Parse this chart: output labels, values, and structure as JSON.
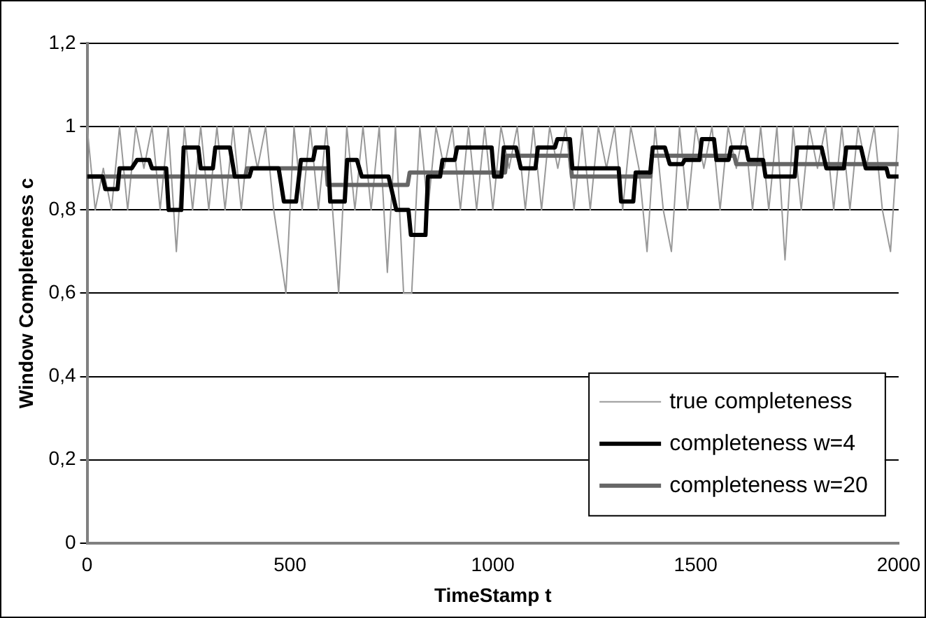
{
  "chart_data": {
    "type": "line",
    "xlabel": "TimeStamp t",
    "ylabel": "Window Completeness c",
    "xlim": [
      0,
      2000
    ],
    "xticks": [
      0,
      500,
      1000,
      1500,
      2000
    ],
    "ylim": [
      0,
      1.2
    ],
    "yticks": [
      0,
      {
        "value": 0.2,
        "label": "0,2"
      },
      {
        "value": 0.4,
        "label": "0,4"
      },
      {
        "value": 0.6,
        "label": "0,6"
      },
      {
        "value": 0.8,
        "label": "0,8"
      },
      1,
      {
        "value": 1.2,
        "label": "1,2"
      }
    ],
    "grid": "y",
    "legend": "bottom right",
    "marker": "none",
    "line_style": "solid",
    "series": [
      {
        "name": "true completeness",
        "color": "#999999",
        "x": [
          0,
          20,
          40,
          60,
          80,
          100,
          120,
          140,
          160,
          180,
          200,
          220,
          240,
          260,
          280,
          300,
          320,
          340,
          360,
          380,
          400,
          420,
          440,
          460,
          490,
          510,
          530,
          550,
          570,
          590,
          620,
          640,
          660,
          680,
          700,
          720,
          740,
          760,
          780,
          800,
          820,
          840,
          860,
          880,
          900,
          920,
          940,
          960,
          980,
          1000,
          1020,
          1040,
          1060,
          1080,
          1100,
          1120,
          1140,
          1160,
          1180,
          1200,
          1220,
          1240,
          1260,
          1280,
          1300,
          1320,
          1340,
          1360,
          1380,
          1400,
          1420,
          1440,
          1460,
          1480,
          1500,
          1520,
          1540,
          1560,
          1580,
          1600,
          1620,
          1640,
          1660,
          1680,
          1700,
          1720,
          1740,
          1760,
          1780,
          1800,
          1820,
          1840,
          1860,
          1880,
          1900,
          1920,
          1940,
          1960,
          1980,
          2000
        ],
        "values": [
          1,
          0.8,
          0.9,
          0.8,
          1,
          0.8,
          1,
          0.9,
          1,
          0.8,
          1,
          0.7,
          1,
          0.8,
          1,
          0.8,
          1,
          0.8,
          1,
          0.8,
          1,
          0.9,
          1,
          0.8,
          0.6,
          1,
          0.8,
          1,
          0.8,
          1,
          0.6,
          1,
          0.8,
          1,
          0.8,
          1,
          0.65,
          1,
          0.6,
          0.6,
          1,
          0.8,
          1,
          0.9,
          1,
          0.8,
          1,
          0.8,
          1,
          0.8,
          1,
          0.9,
          1,
          0.8,
          1,
          0.8,
          1,
          0.9,
          1,
          0.8,
          1,
          0.8,
          1,
          0.9,
          1,
          0.8,
          1,
          0.9,
          0.7,
          1,
          0.8,
          0.7,
          1,
          0.8,
          1,
          0.9,
          1,
          0.8,
          1,
          0.9,
          1,
          0.8,
          1,
          0.8,
          1,
          0.68,
          1,
          0.8,
          1,
          0.9,
          1,
          0.8,
          1,
          0.8,
          1,
          0.9,
          1,
          0.8,
          0.7,
          1
        ]
      },
      {
        "name": "completeness w=4",
        "color": "#000000",
        "x": [
          0,
          38,
          45,
          75,
          80,
          110,
          123,
          153,
          160,
          195,
          201,
          232,
          238,
          274,
          280,
          310,
          316,
          352,
          364,
          400,
          406,
          472,
          485,
          515,
          527,
          557,
          563,
          593,
          599,
          635,
          641,
          665,
          677,
          743,
          762,
          792,
          798,
          834,
          840,
          870,
          876,
          906,
          912,
          997,
          1003,
          1021,
          1027,
          1057,
          1069,
          1105,
          1111,
          1153,
          1159,
          1190,
          1196,
          1310,
          1316,
          1346,
          1352,
          1388,
          1394,
          1424,
          1436,
          1467,
          1473,
          1509,
          1515,
          1545,
          1551,
          1581,
          1587,
          1624,
          1630,
          1666,
          1672,
          1744,
          1750,
          1810,
          1822,
          1865,
          1871,
          1907,
          1919,
          1970,
          1975,
          2000
        ],
        "values": [
          0.88,
          0.88,
          0.85,
          0.85,
          0.9,
          0.9,
          0.92,
          0.92,
          0.9,
          0.9,
          0.8,
          0.8,
          0.95,
          0.95,
          0.9,
          0.9,
          0.95,
          0.95,
          0.88,
          0.88,
          0.9,
          0.9,
          0.82,
          0.82,
          0.92,
          0.92,
          0.95,
          0.95,
          0.82,
          0.82,
          0.92,
          0.92,
          0.88,
          0.88,
          0.8,
          0.8,
          0.74,
          0.74,
          0.88,
          0.88,
          0.92,
          0.92,
          0.95,
          0.95,
          0.88,
          0.88,
          0.95,
          0.95,
          0.9,
          0.9,
          0.95,
          0.95,
          0.97,
          0.97,
          0.9,
          0.9,
          0.82,
          0.82,
          0.89,
          0.89,
          0.95,
          0.95,
          0.91,
          0.91,
          0.92,
          0.92,
          0.97,
          0.97,
          0.92,
          0.92,
          0.95,
          0.95,
          0.92,
          0.92,
          0.88,
          0.88,
          0.95,
          0.95,
          0.9,
          0.9,
          0.95,
          0.95,
          0.9,
          0.9,
          0.88,
          0.88
        ]
      },
      {
        "name": "completeness w=20",
        "color": "#666666",
        "x": [
          0,
          390,
          394,
          590,
          593,
          790,
          795,
          1030,
          1035,
          1190,
          1195,
          1388,
          1392,
          1595,
          1600,
          2000
        ],
        "values": [
          0.88,
          0.88,
          0.9,
          0.9,
          0.86,
          0.86,
          0.89,
          0.89,
          0.93,
          0.93,
          0.88,
          0.88,
          0.93,
          0.93,
          0.91,
          0.91
        ]
      }
    ]
  }
}
